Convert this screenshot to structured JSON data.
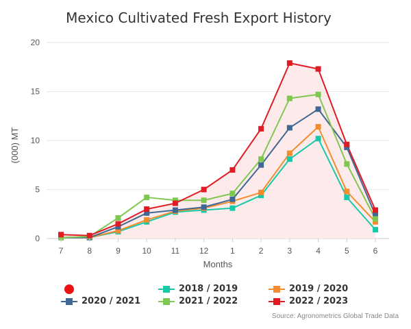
{
  "chart_data": {
    "type": "line",
    "title": "Mexico Cultivated Fresh Export History",
    "xlabel": "Months",
    "ylabel": "(000) MT",
    "categories": [
      "7",
      "8",
      "9",
      "10",
      "11",
      "12",
      "1",
      "2",
      "3",
      "4",
      "5",
      "6"
    ],
    "ylim": [
      0,
      20
    ],
    "yticks": [
      0,
      5,
      10,
      15,
      20
    ],
    "grid": true,
    "legend_position": "bottom",
    "series": [
      {
        "name": "2018 / 2019",
        "color": "#17c9a8",
        "values": [
          0.1,
          0.1,
          0.7,
          1.7,
          2.7,
          2.9,
          3.1,
          4.4,
          8.1,
          10.2,
          4.2,
          0.9
        ]
      },
      {
        "name": "2019 / 2020",
        "color": "#f28c2f",
        "values": [
          0.1,
          0.1,
          0.8,
          1.9,
          2.8,
          3.1,
          3.8,
          4.7,
          8.7,
          11.4,
          4.8,
          1.7
        ]
      },
      {
        "name": "2020 / 2021",
        "color": "#3f6894",
        "values": [
          0.1,
          0.1,
          1.2,
          2.6,
          2.9,
          3.2,
          4.0,
          7.5,
          11.3,
          13.2,
          9.3,
          2.4
        ]
      },
      {
        "name": "2021 / 2022",
        "color": "#7ec850",
        "values": [
          0.1,
          0.2,
          2.1,
          4.2,
          3.9,
          3.9,
          4.6,
          8.1,
          14.3,
          14.7,
          7.6,
          2.0
        ]
      },
      {
        "name": "2022 / 2023",
        "color": "#e01b24",
        "fill": "#fde6e6",
        "values": [
          0.4,
          0.3,
          1.5,
          3.0,
          3.6,
          5.0,
          7.0,
          11.2,
          17.9,
          17.3,
          9.6,
          2.9
        ]
      }
    ],
    "source": "Source: Agronometrics Global Trade Data"
  }
}
